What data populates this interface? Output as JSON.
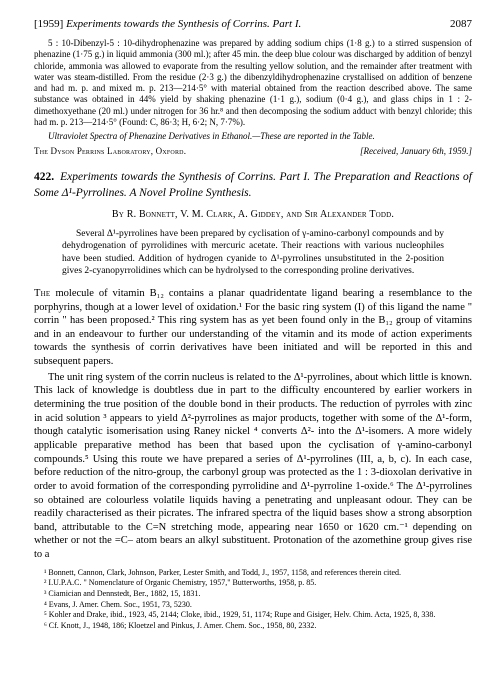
{
  "running_head": {
    "year": "[1959]",
    "title": "Experiments towards the Synthesis of Corrins.  Part I.",
    "pageno": "2087"
  },
  "prev_article": {
    "para1": "5 : 10-Dibenzyl-5 : 10-dihydrophenazine was prepared by adding sodium chips (1·8 g.) to a stirred suspension of phenazine (1·75 g.) in liquid ammonia (300 ml.); after 45 min. the deep blue colour was discharged by addition of benzyl chloride, ammonia was allowed to evaporate from the resulting yellow solution, and the remainder after treatment with water was steam-distilled. From the residue (2·3 g.) the dibenzyldihydrophenazine crystallised on addition of benzene and had m. p. and mixed m. p. 213—214·5° with material obtained from the reaction described above. The same substance was obtained in 44% yield by shaking phenazine (1·1 g.), sodium (0·4 g.), and glass chips in 1 : 2-dimethoxyethane (20 ml.) under nitrogen for 36 hr.⁸ and then decomposing the sodium adduct with benzyl chloride; this had m. p. 213—214·5° (Found: C, 86·3; H, 6·2; N, 7·7%).",
    "para2": "Ultraviolet Spectra of Phenazine Derivatives in Ethanol.—These are reported in the Table.",
    "lab": "The Dyson Perrins Laboratory, Oxford.",
    "received": "[Received, January 6th, 1959.]"
  },
  "article": {
    "number": "422.",
    "title": "Experiments towards the Synthesis of Corrins. Part I. The Preparation and Reactions of Some Δ¹-Pyrrolines. A Novel Proline Synthesis.",
    "authors": "By R. Bonnett, V. M. Clark, A. Giddey, and Sir Alexander Todd.",
    "abstract": "Several Δ¹-pyrrolines have been prepared by cyclisation of γ-amino-carbonyl compounds and by dehydrogenation of pyrrolidines with mercuric acetate. Their reactions with various nucleophiles have been studied. Addition of hydrogen cyanide to Δ¹-pyrrolines unsubstituted in the 2-position gives 2-cyanopyrrolidines which can be hydrolysed to the corresponding proline derivatives.",
    "body1_pre": "The ",
    "body1_cap": "molecule of vitamin B₁₂ contains a planar quadridentate ligand bearing a resemblance to the porphyrins, though at a lower level of oxidation.¹ For the basic ring system (I) of this ligand the name \" corrin \" has been proposed.² This ring system has as yet been found only in the B₁₂ group of vitamins and in an endeavour to further our understanding of the vitamin and its mode of action experiments towards the synthesis of corrin derivatives have been initiated and will be reported in this and subsequent papers.",
    "body2": "The unit ring system of the corrin nucleus is related to the Δ¹-pyrrolines, about which little is known. This lack of knowledge is doubtless due in part to the difficulty encountered by earlier workers in determining the true position of the double bond in their products. The reduction of pyrroles with zinc in acid solution ³ appears to yield Δ²-pyrrolines as major products, together with some of the Δ¹-form, though catalytic isomerisation using Raney nickel ⁴ converts Δ²- into the Δ¹-isomers. A more widely applicable preparative method has been that based upon the cyclisation of γ-amino-carbonyl compounds.⁵ Using this route we have prepared a series of Δ¹-pyrrolines (III, a, b, c). In each case, before reduction of the nitro-group, the carbonyl group was protected as the 1 : 3-dioxolan derivative in order to avoid formation of the corresponding pyrrolidine and Δ¹-pyrroline 1-oxide.⁶ The Δ¹-pyrrolines so obtained are colourless volatile liquids having a penetrating and unpleasant odour. They can be readily characterised as their picrates. The infrared spectra of the liquid bases show a strong absorption band, attributable to the C=N stretching mode, appearing near 1650 or 1620 cm.⁻¹ depending on whether or not the =C– atom bears an alkyl substituent. Protonation of the azomethine group gives rise to a"
  },
  "footnotes": {
    "f1": "¹ Bonnett, Cannon, Clark, Johnson, Parker, Lester Smith, and Todd, J., 1957, 1158, and references therein cited.",
    "f2": "² I.U.P.A.C. \" Nomenclature of Organic Chemistry, 1957,\" Butterworths, 1958, p. 85.",
    "f3": "³ Ciamician and Dennstedt, Ber., 1882, 15, 1831.",
    "f4": "⁴ Evans, J. Amer. Chem. Soc., 1951, 73, 5230.",
    "f5": "⁵ Kohler and Drake, ibid., 1923, 45, 2144; Cloke, ibid., 1929, 51, 1174; Rupe and Gisiger, Helv. Chim. Acta, 1925, 8, 338.",
    "f6": "⁶ Cf. Knott, J., 1948, 186; Kloetzel and Pinkus, J. Amer. Chem. Soc., 1958, 80, 2332."
  }
}
